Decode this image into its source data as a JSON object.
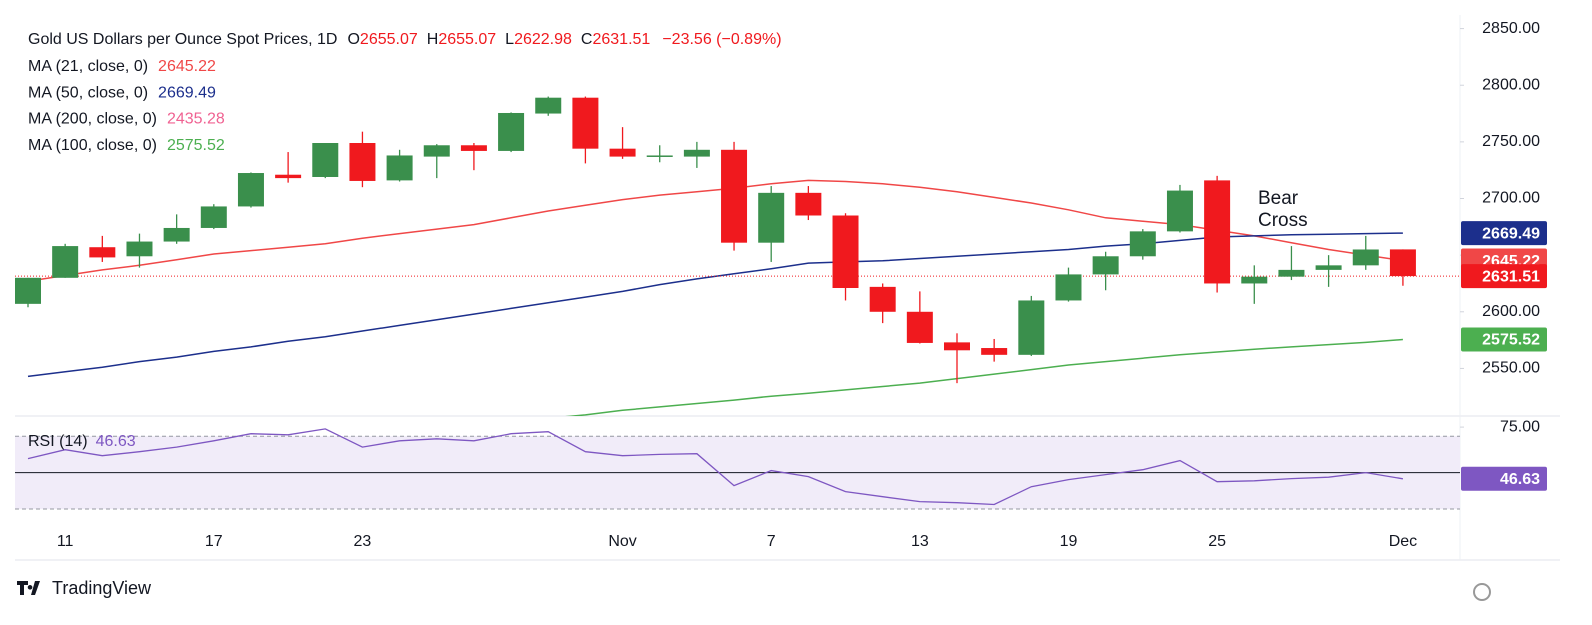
{
  "chart_data": {
    "type": "candlestick",
    "title": "Gold US Dollars per Ounce Spot Prices, 1D",
    "ohlc_prefixes": [
      "O",
      "H",
      "L",
      "C"
    ],
    "change_label": "−23.56 (−0.89%)",
    "categories": [
      null,
      "11",
      null,
      null,
      null,
      "17",
      null,
      null,
      null,
      "23",
      null,
      null,
      null,
      null,
      null,
      null,
      "Nov",
      null,
      null,
      null,
      "7",
      null,
      null,
      null,
      "13",
      null,
      null,
      null,
      "19",
      null,
      null,
      null,
      "25",
      null,
      null,
      null,
      null,
      "Dec"
    ],
    "open": [
      2607,
      2630,
      2657,
      2649,
      2662,
      2674,
      2693,
      2721,
      2719,
      2749,
      2716,
      2737,
      2747,
      2742,
      2775,
      2789,
      2744,
      2737,
      2737,
      2743,
      2661,
      2705,
      2685,
      2622,
      2600,
      2573,
      2568,
      2562,
      2610,
      2633,
      2649,
      2671,
      2716,
      2625,
      2631,
      2637,
      2641,
      2655.07
    ],
    "high": [
      2630,
      2660,
      2667,
      2669,
      2686,
      2695,
      2723,
      2741,
      2749,
      2759,
      2743,
      2748,
      2749,
      2776,
      2790,
      2790,
      2763,
      2747,
      2750,
      2750,
      2711,
      2711,
      2687,
      2625,
      2618,
      2581,
      2576,
      2614,
      2639,
      2653,
      2673,
      2712,
      2720,
      2641,
      2658,
      2650,
      2667,
      2655.07
    ],
    "low": [
      2604,
      2630,
      2644,
      2639,
      2660,
      2673,
      2692,
      2714,
      2718,
      2710,
      2715,
      2718,
      2725,
      2741,
      2773,
      2731,
      2735,
      2732,
      2727,
      2654,
      2644,
      2681,
      2610,
      2590,
      2572,
      2537,
      2556,
      2561,
      2609,
      2619,
      2646,
      2670,
      2617,
      2607,
      2628,
      2622,
      2637,
      2622.98
    ],
    "close": [
      2630,
      2658,
      2648,
      2662,
      2674,
      2693,
      2722.5,
      2718,
      2749,
      2715.5,
      2738,
      2747,
      2742,
      2775.5,
      2789,
      2744,
      2737,
      2738,
      2743,
      2661,
      2705,
      2685,
      2621,
      2600,
      2572.5,
      2566,
      2562,
      2610,
      2633,
      2649,
      2671,
      2707,
      2625,
      2631,
      2637,
      2641,
      2655,
      2631.51
    ],
    "up_color": "#3a8f4c",
    "down_color": "#f0191e",
    "ylim": [
      2508,
      2862
    ],
    "yticks": [
      {
        "value": 2550,
        "label": "2550.00"
      },
      {
        "value": 2600,
        "label": "2600.00"
      },
      {
        "value": 2650,
        "label": "2650.00"
      },
      {
        "value": 2700,
        "label": "2700.00"
      },
      {
        "value": 2750,
        "label": "2750.00"
      },
      {
        "value": 2800,
        "label": "2800.00"
      },
      {
        "value": 2850,
        "label": "2850.00"
      }
    ],
    "last_price_line": true,
    "series": [
      {
        "name": "MA (21, close, 0)",
        "color": "#f04747",
        "values": [
          2627,
          2632,
          2637,
          2641,
          2646,
          2651,
          2654,
          2657,
          2660,
          2665,
          2669,
          2673,
          2677,
          2683,
          2689,
          2694,
          2699,
          2703,
          2706,
          2709,
          2713,
          2716,
          2715,
          2713,
          2710,
          2706,
          2701,
          2696,
          2690,
          2683,
          2680,
          2677,
          2672,
          2667,
          2661,
          2655,
          2650,
          2645.22
        ]
      },
      {
        "name": "MA (50, close, 0)",
        "color": "#1c2f8c",
        "values": [
          2543,
          2547,
          2551,
          2556,
          2560,
          2565,
          2569,
          2574,
          2578,
          2583,
          2588,
          2593,
          2598,
          2603,
          2608,
          2613,
          2618,
          2624,
          2629,
          2633.5,
          2638,
          2643,
          2644,
          2645,
          2647,
          2649,
          2651,
          2653,
          2655,
          2658,
          2660,
          2663,
          2666,
          2667,
          2668,
          2668.5,
          2669,
          2669.49
        ]
      },
      {
        "name": "MA (200, close, 0)",
        "color": "#f06292",
        "last": 2435.28
      },
      {
        "name": "MA (100, close, 0)",
        "color": "#4caf50",
        "values": [
          null,
          null,
          null,
          null,
          null,
          null,
          null,
          null,
          null,
          null,
          null,
          null,
          null,
          null,
          2506,
          2509,
          2513,
          2516,
          2519,
          2522,
          2525.5,
          2528,
          2531,
          2534,
          2537,
          2541,
          2545,
          2549,
          2553,
          2556,
          2559,
          2562,
          2564.5,
          2567,
          2569,
          2571,
          2573,
          2575.52
        ]
      }
    ],
    "annotation": {
      "lines": [
        "Bear",
        "Cross"
      ],
      "color": "#2962ff"
    },
    "rsi": {
      "name": "RSI (14)",
      "color": "#7e57c2",
      "values": [
        57.7,
        62.6,
        59.3,
        61.5,
        64,
        67.5,
        71.4,
        70.8,
        74,
        64,
        67.5,
        68.6,
        67.5,
        71.4,
        72.5,
        61.5,
        59.3,
        60,
        60.4,
        42.9,
        51.1,
        47.8,
        39.6,
        36.8,
        34.1,
        33.5,
        32.5,
        42.3,
        46.2,
        48.9,
        51.6,
        56.6,
        45,
        45.5,
        46.7,
        47.5,
        50,
        46.63
      ],
      "ylim": [
        18.5,
        80
      ],
      "yticks": [
        {
          "value": 75,
          "label": "75.00"
        }
      ],
      "levels": [
        30,
        50,
        70
      ]
    }
  },
  "branding": {
    "logo": "TradingView"
  }
}
